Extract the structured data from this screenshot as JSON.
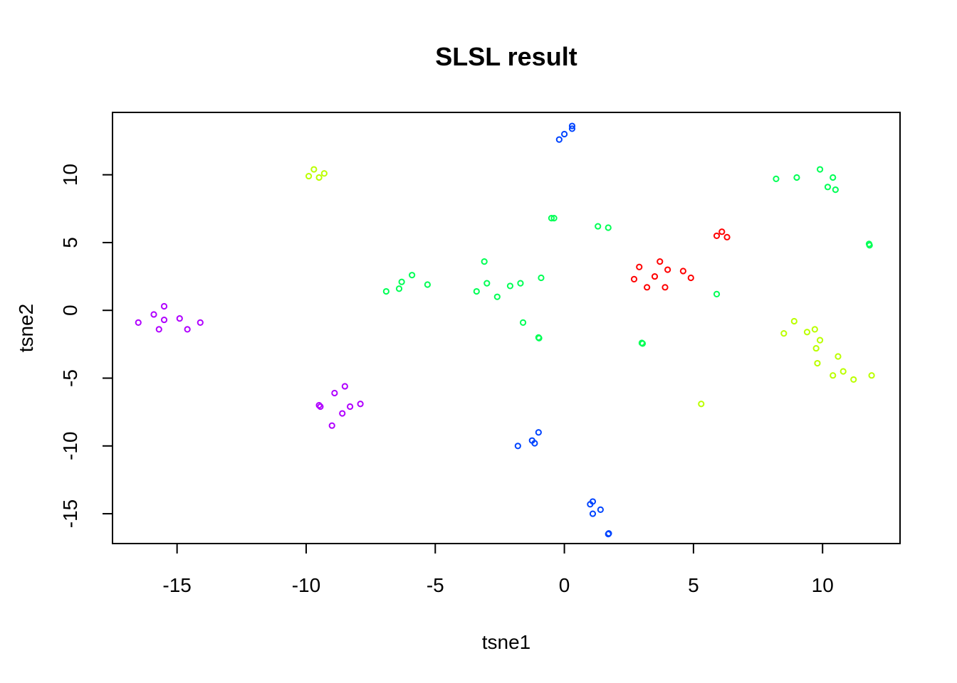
{
  "chart_data": {
    "type": "scatter",
    "title": "SLSL result",
    "xlabel": "tsne1",
    "ylabel": "tsne2",
    "xlim": [
      -17.5,
      13.0
    ],
    "ylim": [
      -17.2,
      14.6
    ],
    "xticks": [
      -15,
      -10,
      -5,
      0,
      5,
      10
    ],
    "yticks": [
      -15,
      -10,
      -5,
      0,
      5,
      10
    ],
    "grid": false,
    "legend": "none",
    "colors": {
      "purple": "#b000ff",
      "blue": "#0044ff",
      "green": "#00ff55",
      "yellowgreen": "#bbff00",
      "red": "#ff0000"
    },
    "series": [
      {
        "color": "#b000ff",
        "points": [
          [
            -16.5,
            -0.9
          ],
          [
            -15.9,
            -0.3
          ],
          [
            -15.7,
            -1.4
          ],
          [
            -15.5,
            0.3
          ],
          [
            -15.5,
            -0.7
          ],
          [
            -14.9,
            -0.6
          ],
          [
            -14.6,
            -1.4
          ],
          [
            -14.1,
            -0.9
          ],
          [
            -9.5,
            -7.0
          ],
          [
            -9.45,
            -7.1
          ],
          [
            -9.0,
            -8.5
          ],
          [
            -8.9,
            -6.1
          ],
          [
            -8.6,
            -7.6
          ],
          [
            -8.5,
            -5.6
          ],
          [
            -8.3,
            -7.1
          ],
          [
            -7.9,
            -6.9
          ]
        ]
      },
      {
        "color": "#0044ff",
        "points": [
          [
            -0.2,
            12.6
          ],
          [
            0.0,
            13.0
          ],
          [
            0.3,
            13.6
          ],
          [
            0.3,
            13.4
          ],
          [
            -1.8,
            -10.0
          ],
          [
            -1.25,
            -9.6
          ],
          [
            -1.15,
            -9.8
          ],
          [
            -1.0,
            -9.0
          ],
          [
            1.0,
            -14.3
          ],
          [
            1.1,
            -14.1
          ],
          [
            1.1,
            -15.0
          ],
          [
            1.4,
            -14.7
          ],
          [
            1.7,
            -16.5
          ],
          [
            1.72,
            -16.45
          ]
        ]
      },
      {
        "color": "#00ff55",
        "points": [
          [
            -6.9,
            1.4
          ],
          [
            -6.4,
            1.6
          ],
          [
            -6.3,
            2.1
          ],
          [
            -5.9,
            2.6
          ],
          [
            -5.3,
            1.9
          ],
          [
            -3.4,
            1.4
          ],
          [
            -3.1,
            3.6
          ],
          [
            -3.0,
            2.0
          ],
          [
            -2.6,
            1.0
          ],
          [
            -2.1,
            1.8
          ],
          [
            -1.7,
            2.0
          ],
          [
            -1.6,
            -0.9
          ],
          [
            -1.0,
            -2.0
          ],
          [
            -0.98,
            -2.05
          ],
          [
            -0.9,
            2.4
          ],
          [
            -0.5,
            6.8
          ],
          [
            -0.4,
            6.8
          ],
          [
            1.3,
            6.2
          ],
          [
            1.7,
            6.1
          ],
          [
            3.0,
            -2.4
          ],
          [
            3.03,
            -2.45
          ],
          [
            5.9,
            1.2
          ],
          [
            8.2,
            9.7
          ],
          [
            9.0,
            9.8
          ],
          [
            9.9,
            10.4
          ],
          [
            10.2,
            9.1
          ],
          [
            10.4,
            9.8
          ],
          [
            10.5,
            8.9
          ],
          [
            11.8,
            4.9
          ],
          [
            11.82,
            4.8
          ]
        ]
      },
      {
        "color": "#bbff00",
        "points": [
          [
            -9.9,
            9.9
          ],
          [
            -9.7,
            10.4
          ],
          [
            -9.5,
            9.8
          ],
          [
            -9.3,
            10.1
          ],
          [
            5.3,
            -6.9
          ],
          [
            8.5,
            -1.7
          ],
          [
            8.9,
            -0.8
          ],
          [
            9.4,
            -1.6
          ],
          [
            9.7,
            -1.4
          ],
          [
            9.75,
            -2.8
          ],
          [
            9.8,
            -3.9
          ],
          [
            9.9,
            -2.2
          ],
          [
            10.4,
            -4.8
          ],
          [
            10.6,
            -3.4
          ],
          [
            10.8,
            -4.5
          ],
          [
            11.2,
            -5.1
          ],
          [
            11.9,
            -4.8
          ]
        ]
      },
      {
        "color": "#ff0000",
        "points": [
          [
            2.7,
            2.3
          ],
          [
            2.9,
            3.2
          ],
          [
            3.2,
            1.7
          ],
          [
            3.5,
            2.5
          ],
          [
            3.7,
            3.6
          ],
          [
            3.9,
            1.7
          ],
          [
            4.0,
            3.0
          ],
          [
            4.6,
            2.9
          ],
          [
            4.9,
            2.4
          ],
          [
            5.9,
            5.5
          ],
          [
            6.1,
            5.8
          ],
          [
            6.3,
            5.4
          ]
        ]
      }
    ]
  }
}
